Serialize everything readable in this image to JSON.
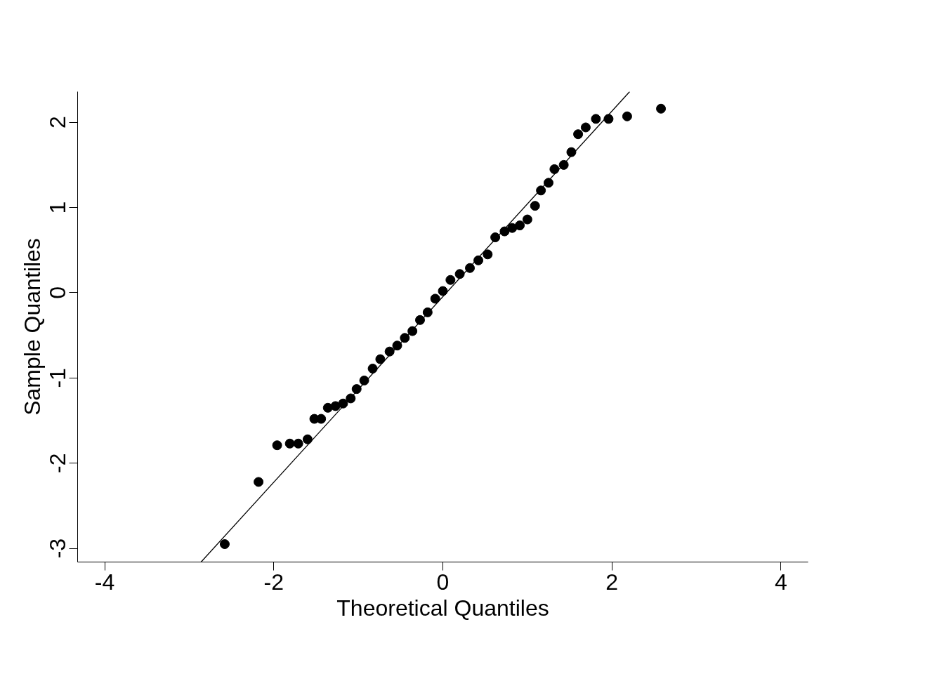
{
  "chart_data": {
    "type": "scatter",
    "xlabel": "Theoretical Quantiles",
    "ylabel": "Sample Quantiles",
    "xlim": [
      -4.32,
      4.32
    ],
    "ylim": [
      -3.16,
      2.36
    ],
    "xticks": [
      -4,
      -2,
      0,
      2,
      4
    ],
    "yticks": [
      -3,
      -2,
      -1,
      0,
      1,
      2
    ],
    "grid": false,
    "series": [
      {
        "marker": "circle",
        "color": "#000000",
        "x": [
          -2.58,
          -2.18,
          -1.96,
          -1.81,
          -1.71,
          -1.6,
          -1.52,
          -1.44,
          -1.36,
          -1.27,
          -1.18,
          -1.09,
          -1.02,
          -0.93,
          -0.83,
          -0.74,
          -0.63,
          -0.54,
          -0.45,
          -0.36,
          -0.27,
          -0.18,
          -0.09,
          0.0,
          0.09,
          0.2,
          0.32,
          0.42,
          0.53,
          0.62,
          0.73,
          0.82,
          0.91,
          1.0,
          1.09,
          1.16,
          1.25,
          1.32,
          1.43,
          1.52,
          1.6,
          1.69,
          1.81,
          1.96,
          2.18,
          2.58
        ],
        "values": [
          -2.95,
          -2.22,
          -1.79,
          -1.77,
          -1.77,
          -1.72,
          -1.48,
          -1.48,
          -1.35,
          -1.33,
          -1.3,
          -1.24,
          -1.13,
          -1.03,
          -0.89,
          -0.78,
          -0.69,
          -0.62,
          -0.53,
          -0.45,
          -0.32,
          -0.23,
          -0.07,
          0.02,
          0.15,
          0.22,
          0.29,
          0.38,
          0.45,
          0.65,
          0.72,
          0.76,
          0.79,
          0.86,
          1.02,
          1.2,
          1.29,
          1.45,
          1.5,
          1.65,
          1.86,
          1.94,
          2.04,
          2.04,
          2.07,
          2.16
        ]
      },
      {
        "type": "line",
        "color": "#000000",
        "line_style": "solid",
        "x": [
          -2.86,
          2.21
        ],
        "values": [
          -3.16,
          2.36
        ]
      }
    ]
  }
}
